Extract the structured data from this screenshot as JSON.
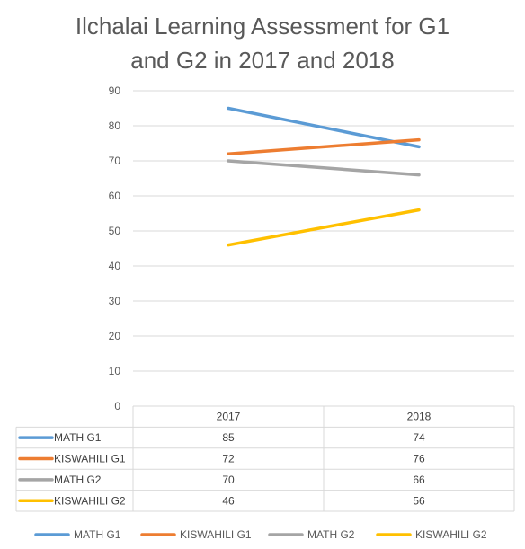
{
  "chart_data": {
    "type": "line",
    "title_lines": [
      "Ilchalai Learning Assessment for G1",
      "and G2 in 2017 and 2018"
    ],
    "categories": [
      "2017",
      "2018"
    ],
    "ylim": [
      0,
      90
    ],
    "yticks": [
      0,
      10,
      20,
      30,
      40,
      50,
      60,
      70,
      80,
      90
    ],
    "grid": true,
    "legend": "bottom",
    "data_table": true,
    "series": [
      {
        "name": "MATH G1",
        "values": [
          85,
          74
        ],
        "color": "#5B9BD5"
      },
      {
        "name": "KISWAHILI G1",
        "values": [
          72,
          76
        ],
        "color": "#ED7D31"
      },
      {
        "name": "MATH G2",
        "values": [
          70,
          66
        ],
        "color": "#A5A5A5"
      },
      {
        "name": "KISWAHILI G2",
        "values": [
          46,
          56
        ],
        "color": "#FFC000"
      }
    ]
  }
}
